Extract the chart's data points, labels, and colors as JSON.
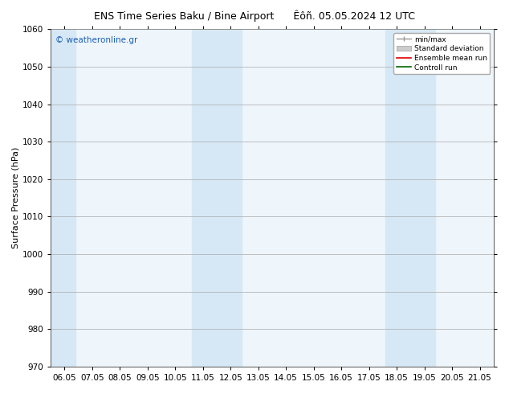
{
  "title_left": "ENS Time Series Baku / Bine Airport",
  "title_right": "Êôñ. 05.05.2024 12 UTC",
  "ylabel": "Surface Pressure (hPa)",
  "ylim": [
    970,
    1060
  ],
  "yticks": [
    970,
    980,
    990,
    1000,
    1010,
    1020,
    1030,
    1040,
    1050,
    1060
  ],
  "xtick_labels": [
    "06.05",
    "07.05",
    "08.05",
    "09.05",
    "10.05",
    "11.05",
    "12.05",
    "13.05",
    "14.05",
    "15.05",
    "16.05",
    "17.05",
    "18.05",
    "19.05",
    "20.05",
    "21.05"
  ],
  "watermark": "© weatheronline.gr",
  "watermark_color": "#1a5fb4",
  "shaded_color": "#d6e8f5",
  "background_color": "#ffffff",
  "axes_background": "#eef5fb",
  "legend_labels": [
    "min/max",
    "Standard deviation",
    "Ensemble mean run",
    "Controll run"
  ],
  "title_fontsize": 9,
  "tick_fontsize": 7.5,
  "ylabel_fontsize": 8,
  "watermark_fontsize": 7.5
}
